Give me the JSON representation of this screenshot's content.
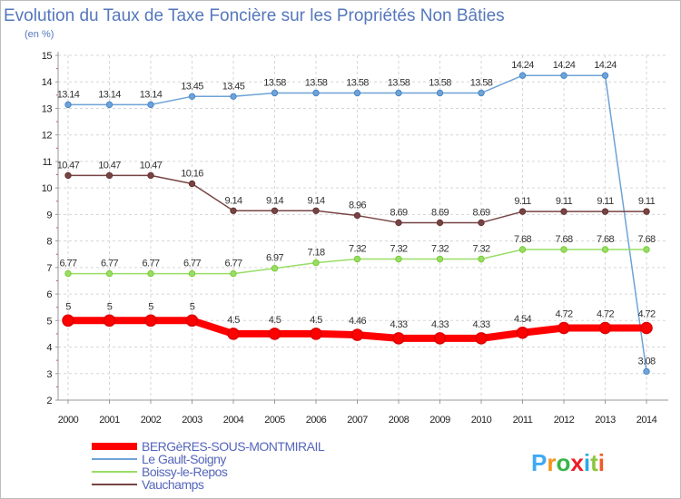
{
  "chart_data": {
    "type": "line",
    "title": "Evolution du Taux de Taxe Foncière sur les Propriétés Non Bâties",
    "ylabel": "(en %)",
    "xlabel": "",
    "categories": [
      "2000",
      "2001",
      "2002",
      "2003",
      "2004",
      "2005",
      "2006",
      "2007",
      "2008",
      "2009",
      "2010",
      "2011",
      "2012",
      "2013",
      "2014"
    ],
    "ylim": [
      2,
      15
    ],
    "yticks": [
      "2",
      "3",
      "4",
      "5",
      "6",
      "7",
      "8",
      "9",
      "10",
      "11",
      "12",
      "13",
      "14",
      "15"
    ],
    "grid": true,
    "legend_position": "bottom-left",
    "series": [
      {
        "name": "BERGèRES-SOUS-MONTMIRAIL",
        "color": "#ff0000",
        "marker": "#dd0000",
        "values": [
          5,
          5,
          5,
          5,
          4.5,
          4.5,
          4.5,
          4.46,
          4.33,
          4.33,
          4.33,
          4.54,
          4.72,
          4.72,
          4.72
        ],
        "labels": [
          "5",
          "5",
          "5",
          "5",
          "4.5",
          "4.5",
          "4.5",
          "4.46",
          "4.33",
          "4.33",
          "4.33",
          "4.54",
          "4.72",
          "4.72",
          "4.72"
        ]
      },
      {
        "name": "Le Gault-Soigny",
        "color": "#6ea3d6",
        "marker": "#4a86c8",
        "values": [
          13.14,
          13.14,
          13.14,
          13.45,
          13.45,
          13.58,
          13.58,
          13.58,
          13.58,
          13.58,
          13.58,
          14.24,
          14.24,
          14.24,
          3.08
        ],
        "labels": [
          "13.14",
          "13.14",
          "13.14",
          "13.45",
          "13.45",
          "13.58",
          "13.58",
          "13.58",
          "13.58",
          "13.58",
          "13.58",
          "14.24",
          "14.24",
          "14.24",
          "3.08"
        ]
      },
      {
        "name": "Boissy-le-Repos",
        "color": "#99dd66",
        "marker": "#77cc33",
        "values": [
          6.77,
          6.77,
          6.77,
          6.77,
          6.77,
          6.97,
          7.18,
          7.32,
          7.32,
          7.32,
          7.32,
          7.68,
          7.68,
          7.68,
          7.68
        ],
        "labels": [
          "6.77",
          "6.77",
          "6.77",
          "6.77",
          "6.77",
          "6.97",
          "7.18",
          "7.32",
          "7.32",
          "7.32",
          "7.32",
          "7.68",
          "7.68",
          "7.68",
          "7.68"
        ]
      },
      {
        "name": "Vauchamps",
        "color": "#774444",
        "marker": "#663333",
        "values": [
          10.47,
          10.47,
          10.47,
          10.16,
          9.14,
          9.14,
          9.14,
          8.96,
          8.69,
          8.69,
          8.69,
          9.11,
          9.11,
          9.11,
          9.11
        ],
        "labels": [
          "10.47",
          "10.47",
          "10.47",
          "10.16",
          "9.14",
          "9.14",
          "9.14",
          "8.96",
          "8.69",
          "8.69",
          "8.69",
          "9.11",
          "9.11",
          "9.11",
          "9.11"
        ]
      }
    ]
  },
  "brand": {
    "logo_text": "Proxiti",
    "colors": [
      "#3fa9f5",
      "#f7931e",
      "#39b54a",
      "#ed1c24",
      "#29abe2",
      "#8cc63f",
      "#f15a24"
    ]
  }
}
